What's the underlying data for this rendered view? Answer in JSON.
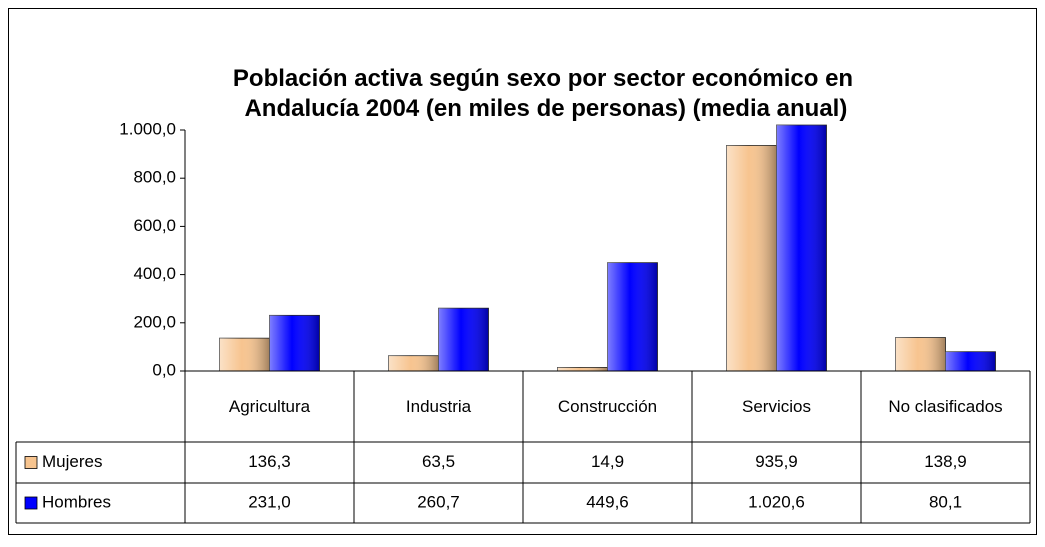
{
  "chart_data": {
    "type": "bar",
    "title": "Población activa según sexo por sector económico en Andalucía 2004 (en miles de personas) (media anual)",
    "categories": [
      "Agricultura",
      "Industria",
      "Construcción",
      "Servicios",
      "No clasificados"
    ],
    "series": [
      {
        "name": "Mujeres",
        "color": "#f7c48f",
        "values": [
          136.3,
          63.5,
          14.9,
          935.9,
          138.9
        ],
        "value_labels": [
          "136,3",
          "63,5",
          "14,9",
          "935,9",
          "138,9"
        ]
      },
      {
        "name": "Hombres",
        "color": "#0000ff",
        "values": [
          231.0,
          260.7,
          449.6,
          1020.6,
          80.1
        ],
        "value_labels": [
          "231,0",
          "260,7",
          "449,6",
          "1.020,6",
          "80,1"
        ]
      }
    ],
    "ylim": [
      0,
      1000
    ],
    "yticks": [
      {
        "value": 0,
        "label": "0,0"
      },
      {
        "value": 200,
        "label": "200,0"
      },
      {
        "value": 400,
        "label": "400,0"
      },
      {
        "value": 600,
        "label": "600,0"
      },
      {
        "value": 800,
        "label": "800,0"
      },
      {
        "value": 1000,
        "label": "1.000,0"
      }
    ]
  }
}
